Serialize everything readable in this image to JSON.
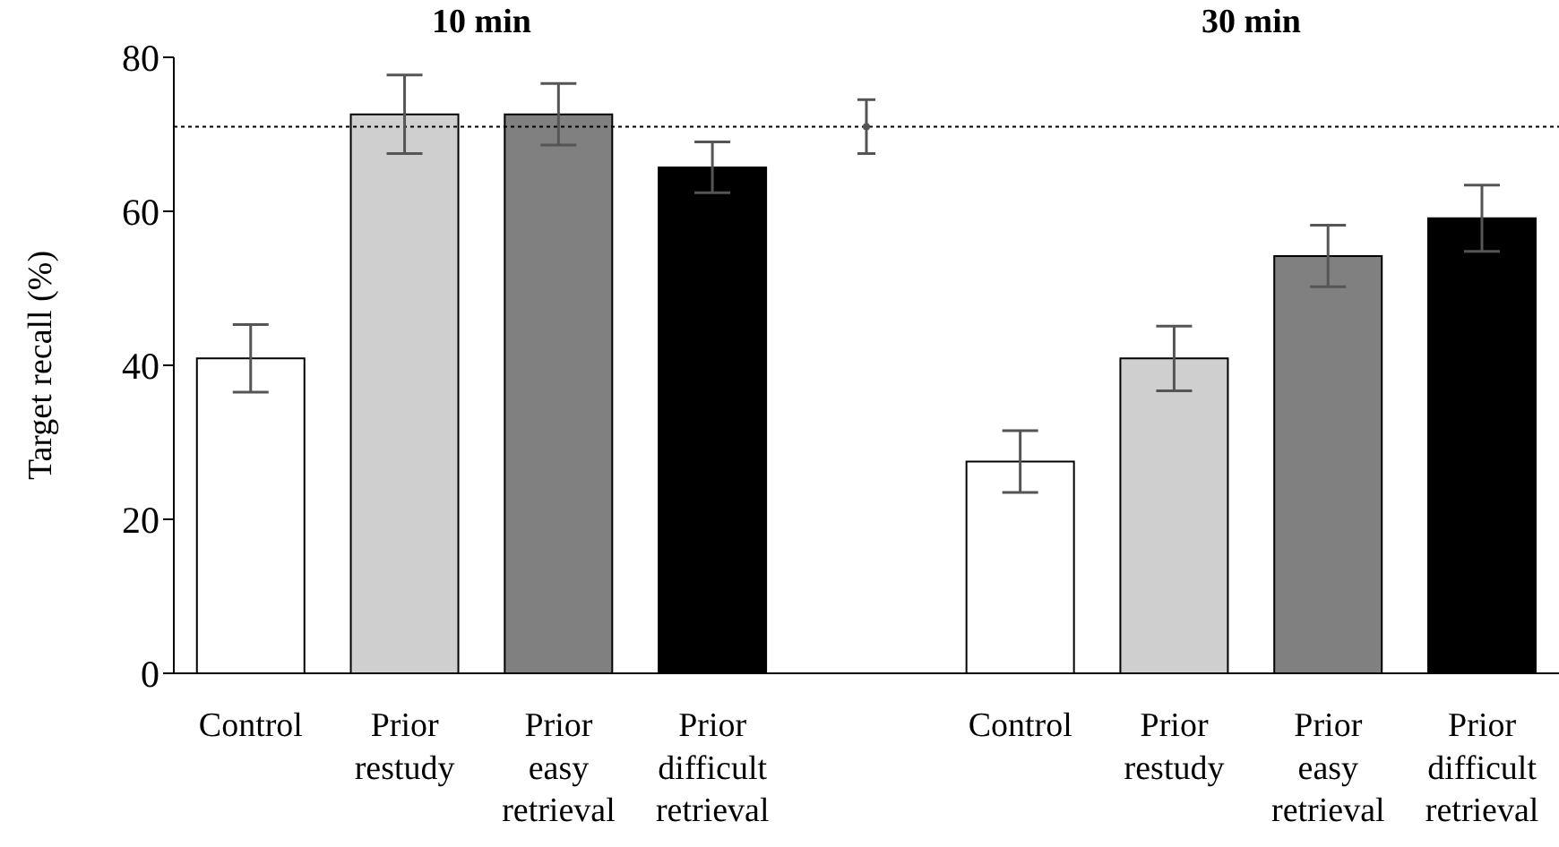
{
  "chart_data": {
    "type": "bar",
    "ylabel": "Target recall (%)",
    "annotations": [
      "10 min",
      "30 min"
    ],
    "categories": [
      "Control",
      "Prior restudy",
      "Prior easy retrieval",
      "Prior difficult retrieval",
      null,
      "Control",
      "Prior restudy",
      "Prior easy retrieval",
      "Prior difficult retrieval"
    ],
    "series": [
      {
        "colors": [
          "#ffffff",
          "#d0cfd0",
          "#808080",
          "#000000",
          "#ffffff",
          "#ffffff",
          "#d0cfd0",
          "#808080",
          "#000000"
        ],
        "values": [
          40.9,
          72.6,
          72.6,
          65.7,
          null,
          27.5,
          40.9,
          54.2,
          59.1
        ],
        "errors": [
          4.4,
          5.1,
          4,
          3.3,
          null,
          4,
          4.2,
          4,
          4.3
        ]
      },
      {
        "type": "scatter",
        "color": "#555555",
        "values": [
          null,
          null,
          null,
          null,
          71,
          null,
          null,
          null,
          null
        ],
        "errors": [
          null,
          null,
          null,
          null,
          3.5,
          null,
          null,
          null,
          null
        ]
      }
    ],
    "ylim": [
      0,
      80
    ],
    "yticks": [
      0,
      20,
      40,
      60,
      80
    ],
    "ref_lines": [
      {
        "axis": "y",
        "value": 71,
        "line_style": "dotted",
        "color": "#000000"
      }
    ]
  }
}
